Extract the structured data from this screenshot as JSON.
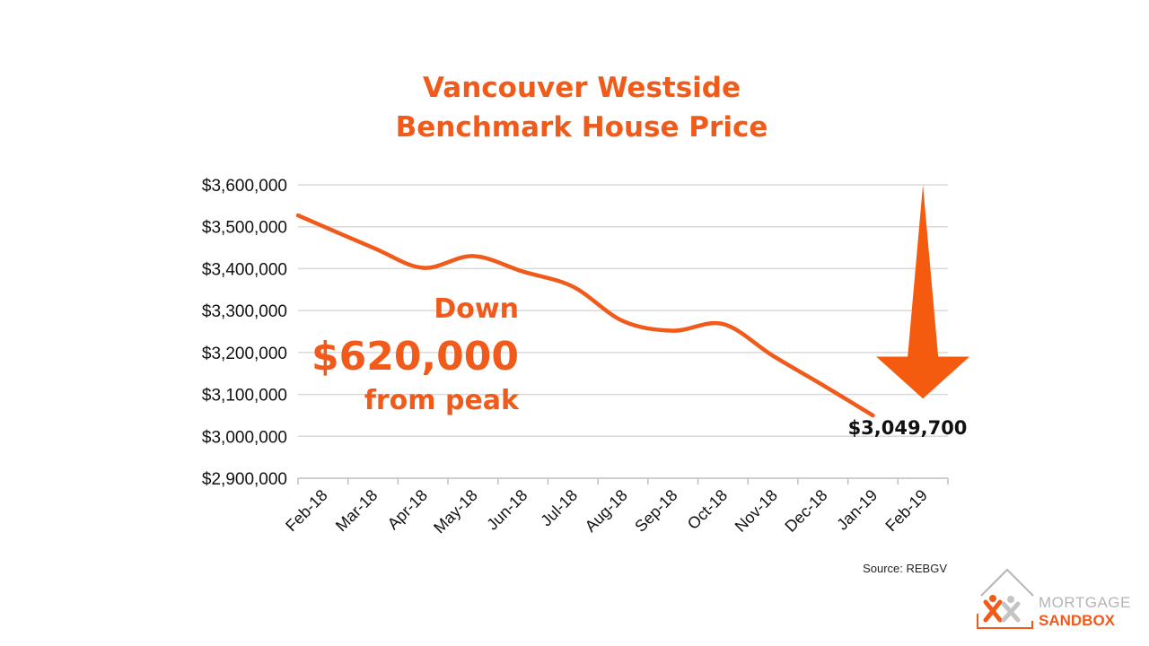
{
  "chart_data": {
    "type": "line",
    "title": [
      "Vancouver Westside",
      "Benchmark House Price"
    ],
    "categories": [
      "Feb-18",
      "Mar-18",
      "Apr-18",
      "May-18",
      "Jun-18",
      "Jul-18",
      "Aug-18",
      "Sep-18",
      "Oct-18",
      "Nov-18",
      "Dec-18",
      "Jan-19",
      "Feb-19"
    ],
    "series": [
      {
        "values": [
          3527000,
          3450000,
          3402000,
          3430000,
          3393000,
          3357000,
          3275000,
          3252000,
          3268000,
          3192000,
          3122000,
          3049700,
          null
        ]
      }
    ],
    "ylim": [
      2900000,
      3600000
    ],
    "yticks": [
      2900000,
      3000000,
      3100000,
      3200000,
      3300000,
      3400000,
      3500000,
      3600000
    ],
    "ytick_labels": [
      "$2,900,000",
      "$3,000,000",
      "$3,100,000",
      "$3,200,000",
      "$3,300,000",
      "$3,400,000",
      "$3,500,000",
      "$3,600,000"
    ],
    "grid": true,
    "line_color": "#f05a1a",
    "annotation": {
      "line1": "Down",
      "line2": "$620,000",
      "line3": "from peak"
    },
    "end_label": "$3,049,700",
    "arrow": {
      "from_value": 3600000,
      "to_value": 3090000,
      "category": "Feb-19",
      "color": "#f55b0e"
    },
    "source": "Source: REBGV"
  },
  "logo": {
    "line1": "MORTGAGE",
    "line2": "SANDBOX"
  },
  "colors": {
    "accent": "#f05a1a",
    "grid": "#d9d9d9",
    "logo_gray": "#b5b5b5"
  }
}
